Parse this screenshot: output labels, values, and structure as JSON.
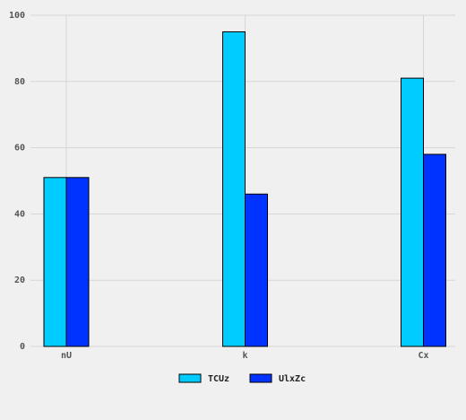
{
  "chart_data": {
    "type": "bar",
    "categories": [
      "nU",
      "k",
      "Cx"
    ],
    "series": [
      {
        "name": "TCUz",
        "values": [
          51,
          95,
          81
        ],
        "color": "#00ccff"
      },
      {
        "name": "UlxZc",
        "values": [
          51,
          46,
          58
        ],
        "color": "#0033ff"
      }
    ],
    "title": "",
    "xlabel": "",
    "ylabel": "",
    "ylim": [
      0,
      100
    ],
    "yticks": [
      0,
      20,
      40,
      60,
      80,
      100
    ],
    "grid": true,
    "legend_position": "bottom-center",
    "background_color": "#f0f0f0",
    "grid_color": "#d6d6d6",
    "text_color": "#555555"
  }
}
